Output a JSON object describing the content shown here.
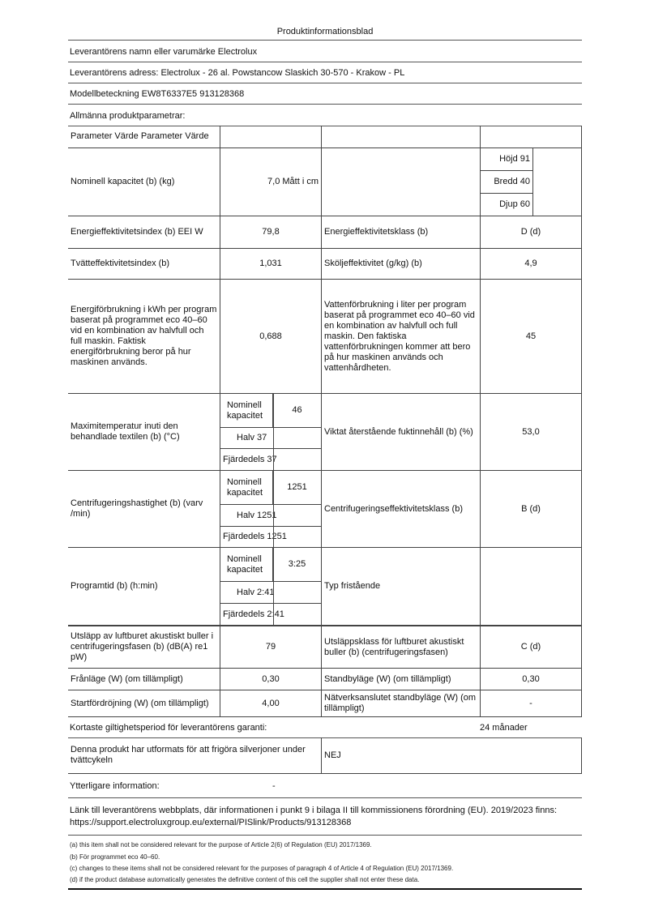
{
  "title": "Produktinformationsblad",
  "supplier_name": "Leverantörens namn eller varumärke Electrolux",
  "supplier_address": "Leverantörens adress: Electrolux - 26 al. Powstancow Slaskich 30-570 - Krakow - PL",
  "model": "Modellbeteckning EW8T6337E5 913128368",
  "general_params": "Allmänna produktparametrar:",
  "header": "Parameter Värde Parameter Värde",
  "rows": {
    "capacity": {
      "label": "Nominell kapacitet (b) (kg)",
      "value": "7,0 Mått i cm",
      "height": "Höjd 91",
      "width": "Bredd 40",
      "depth": "Djup 60"
    },
    "eei": {
      "label": "Energieffektivitetsindex (b) EEI W",
      "value": "79,8",
      "label2": "Energieffektivitetsklass (b)",
      "value2": "D (d)"
    },
    "wash": {
      "label": "Tvätteffektivitetsindex (b)",
      "value": "1,031",
      "label2": "Sköljeffektivitet (g/kg) (b)",
      "value2": "4,9"
    },
    "energy": {
      "label": "Energiförbrukning i kWh per program baserat på programmet eco 40–60 vid en kombination av halvfull och full maskin. Faktisk energiförbrukning beror på hur maskinen används.",
      "value": "0,688",
      "label2": "Vattenförbrukning i liter per program baserat på programmet eco 40–60 vid en kombination av halvfull och full maskin. Den faktiska vattenförbrukningen kommer att bero på hur maskinen används och vattenhårdheten.",
      "value2": "45"
    },
    "temp": {
      "label": "Maximitemperatur inuti den behandlade textilen (b) (°C)",
      "nominal_label": "Nominell kapacitet",
      "nominal": "46",
      "half": "Halv 37",
      "quarter": "Fjärdedels 37",
      "label2": "Viktat återstående fuktinnehåll (b) (%)",
      "value2": "53,0"
    },
    "spin": {
      "label": "Centrifugeringshastighet (b) (varv /min)",
      "nominal_label": "Nominell kapacitet",
      "nominal": "1251",
      "half": "Halv 1251",
      "quarter": "Fjärdedels 1251",
      "label2": "Centrifugeringseffektivitetsklass (b)",
      "value2": "B (d)"
    },
    "time": {
      "label": "Programtid (b) (h:min)",
      "nominal_label": "Nominell kapacitet",
      "nominal": "3:25",
      "half": "Halv 2:41",
      "quarter": "Fjärdedels 2:41",
      "label2": "Typ fristående"
    },
    "noise": {
      "label": "Utsläpp av luftburet akustiskt buller i centrifugeringsfasen (b) (dB(A) re1 pW)",
      "value": "79",
      "label2": "Utsläppsklass för luftburet akustiskt buller (b) (centrifugeringsfasen)",
      "value2": "C (d)"
    },
    "off": {
      "label": "Frånläge (W) (om tillämpligt)",
      "value": "0,30",
      "label2": "Standbyläge (W) (om tillämpligt)",
      "value2": "0,30"
    },
    "delay": {
      "label": "Startfördröjning (W) (om tillämpligt)",
      "value": "4,00",
      "label2": "Nätverksanslutet standbyläge (W) (om tillämpligt)",
      "value2": "-"
    }
  },
  "warranty": {
    "label": "Kortaste giltighetsperiod för leverantörens garanti:",
    "value": "24 månader"
  },
  "silver": {
    "label": "Denna produkt har utformats för att frigöra silverjoner under tvättcykeln",
    "value": "NEJ"
  },
  "additional": {
    "label": "Ytterligare information:",
    "value": "-"
  },
  "link": "Länk till leverantörens webbplats, där informationen i punkt 9 i bilaga II till kommissionens förordning (EU). 2019/2023 finns: https://support.electroluxgroup.eu/external/PISlink/Products/913128368",
  "footnotes": [
    "(a) this item shall not be considered relevant for the purpose of Article 2(6) of Regulation (EU) 2017/1369.",
    "(b) För programmet eco 40–60.",
    "(c) changes to these items shall not be considered relevant for the purposes of paragraph 4 of Article 4 of Regulation (EU) 2017/1369.",
    "(d) if the product database automatically generates the definitive content of this cell the supplier shall not enter these data."
  ]
}
